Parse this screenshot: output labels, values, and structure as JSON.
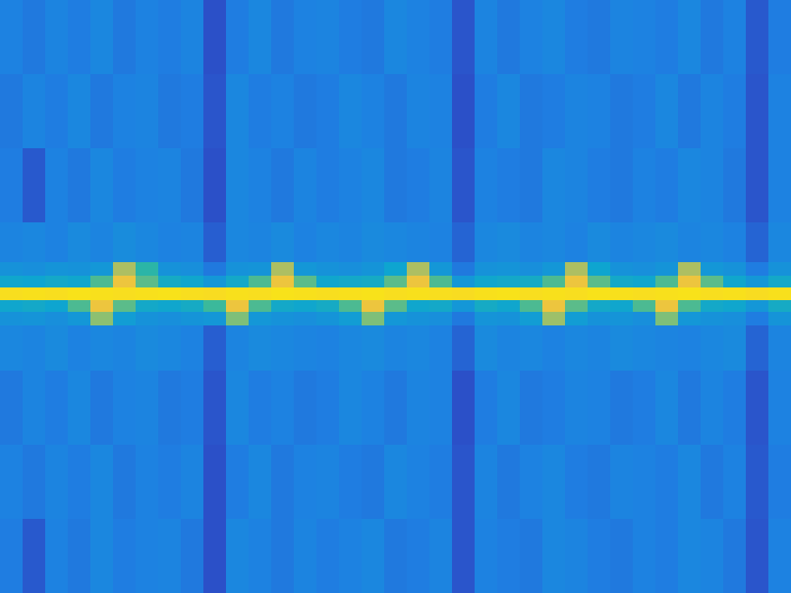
{
  "chart_data": {
    "type": "heatmap",
    "x": [
      0,
      25,
      50,
      75,
      100,
      125,
      150,
      175,
      200,
      225,
      250,
      275,
      300,
      325,
      350,
      375,
      400,
      425,
      450,
      475,
      500,
      525,
      550,
      575,
      600,
      625,
      650,
      675,
      700,
      725,
      750,
      775,
      800,
      825,
      850,
      875
    ],
    "y": [
      0,
      82,
      164,
      246,
      290,
      305,
      318,
      332,
      345,
      360,
      410,
      492,
      574,
      656
    ],
    "cells": [
      [
        0.32,
        0.3,
        0.33,
        0.31,
        0.34,
        0.3,
        0.32,
        0.31,
        0.33,
        0.22,
        0.31,
        0.34,
        0.3,
        0.32,
        0.33,
        0.31,
        0.3,
        0.34,
        0.32,
        0.31,
        0.23,
        0.33,
        0.3,
        0.32,
        0.34,
        0.31,
        0.3,
        0.33,
        0.32,
        0.31,
        0.34,
        0.3,
        0.32,
        0.24,
        0.31
      ],
      [
        0.3,
        0.33,
        0.31,
        0.34,
        0.3,
        0.32,
        0.33,
        0.3,
        0.31,
        0.23,
        0.34,
        0.31,
        0.32,
        0.3,
        0.31,
        0.34,
        0.32,
        0.3,
        0.33,
        0.32,
        0.22,
        0.31,
        0.34,
        0.3,
        0.31,
        0.33,
        0.32,
        0.3,
        0.31,
        0.34,
        0.3,
        0.33,
        0.31,
        0.23,
        0.32
      ],
      [
        0.31,
        0.24,
        0.32,
        0.3,
        0.34,
        0.31,
        0.32,
        0.33,
        0.3,
        0.22,
        0.34,
        0.32,
        0.3,
        0.33,
        0.31,
        0.32,
        0.34,
        0.3,
        0.31,
        0.33,
        0.23,
        0.32,
        0.31,
        0.3,
        0.34,
        0.33,
        0.31,
        0.3,
        0.32,
        0.31,
        0.34,
        0.33,
        0.3,
        0.23,
        0.32
      ],
      [
        0.33,
        0.34,
        0.32,
        0.35,
        0.33,
        0.36,
        0.34,
        0.32,
        0.33,
        0.25,
        0.34,
        0.33,
        0.35,
        0.32,
        0.34,
        0.33,
        0.35,
        0.34,
        0.33,
        0.32,
        0.26,
        0.34,
        0.35,
        0.33,
        0.34,
        0.32,
        0.35,
        0.33,
        0.34,
        0.35,
        0.33,
        0.34,
        0.32,
        0.26,
        0.34
      ],
      [
        0.38,
        0.37,
        0.39,
        0.38,
        0.4,
        0.72,
        0.55,
        0.38,
        0.37,
        0.3,
        0.38,
        0.39,
        0.72,
        0.4,
        0.38,
        0.37,
        0.39,
        0.45,
        0.72,
        0.4,
        0.3,
        0.38,
        0.39,
        0.37,
        0.4,
        0.72,
        0.45,
        0.38,
        0.37,
        0.39,
        0.72,
        0.4,
        0.38,
        0.31,
        0.38
      ],
      [
        0.46,
        0.45,
        0.47,
        0.46,
        0.6,
        0.84,
        0.62,
        0.48,
        0.46,
        0.4,
        0.47,
        0.6,
        0.84,
        0.62,
        0.46,
        0.47,
        0.48,
        0.62,
        0.84,
        0.6,
        0.4,
        0.46,
        0.47,
        0.48,
        0.6,
        0.84,
        0.62,
        0.47,
        0.46,
        0.6,
        0.84,
        0.62,
        0.46,
        0.4,
        0.47
      ],
      [
        0.97,
        0.98,
        0.97,
        0.99,
        0.98,
        0.97,
        0.98,
        0.99,
        0.97,
        0.96,
        0.98,
        0.97,
        0.99,
        0.98,
        0.97,
        0.98,
        0.99,
        0.97,
        0.98,
        0.97,
        0.96,
        0.98,
        0.99,
        0.97,
        0.98,
        0.97,
        0.99,
        0.98,
        0.97,
        0.98,
        0.99,
        0.97,
        0.98,
        0.96,
        0.98
      ],
      [
        0.46,
        0.47,
        0.45,
        0.6,
        0.84,
        0.62,
        0.47,
        0.46,
        0.48,
        0.58,
        0.84,
        0.6,
        0.47,
        0.46,
        0.48,
        0.6,
        0.84,
        0.62,
        0.46,
        0.47,
        0.4,
        0.48,
        0.46,
        0.6,
        0.84,
        0.62,
        0.47,
        0.46,
        0.6,
        0.84,
        0.6,
        0.47,
        0.46,
        0.4,
        0.48
      ],
      [
        0.38,
        0.39,
        0.37,
        0.4,
        0.68,
        0.42,
        0.38,
        0.37,
        0.39,
        0.4,
        0.66,
        0.4,
        0.38,
        0.37,
        0.39,
        0.42,
        0.66,
        0.4,
        0.38,
        0.37,
        0.3,
        0.39,
        0.38,
        0.42,
        0.7,
        0.42,
        0.38,
        0.39,
        0.37,
        0.66,
        0.4,
        0.38,
        0.37,
        0.31,
        0.39
      ],
      [
        0.34,
        0.33,
        0.35,
        0.32,
        0.34,
        0.33,
        0.35,
        0.34,
        0.32,
        0.25,
        0.33,
        0.35,
        0.34,
        0.33,
        0.32,
        0.34,
        0.35,
        0.33,
        0.34,
        0.32,
        0.26,
        0.35,
        0.33,
        0.34,
        0.32,
        0.34,
        0.33,
        0.35,
        0.34,
        0.33,
        0.32,
        0.34,
        0.35,
        0.26,
        0.33
      ],
      [
        0.3,
        0.33,
        0.31,
        0.34,
        0.3,
        0.32,
        0.33,
        0.3,
        0.31,
        0.23,
        0.34,
        0.31,
        0.32,
        0.3,
        0.31,
        0.34,
        0.32,
        0.3,
        0.33,
        0.32,
        0.22,
        0.31,
        0.34,
        0.3,
        0.31,
        0.33,
        0.32,
        0.3,
        0.31,
        0.34,
        0.3,
        0.33,
        0.31,
        0.23,
        0.32
      ],
      [
        0.32,
        0.3,
        0.33,
        0.31,
        0.34,
        0.3,
        0.32,
        0.31,
        0.33,
        0.22,
        0.31,
        0.34,
        0.3,
        0.32,
        0.33,
        0.31,
        0.3,
        0.34,
        0.32,
        0.31,
        0.23,
        0.33,
        0.3,
        0.32,
        0.34,
        0.31,
        0.3,
        0.33,
        0.32,
        0.31,
        0.34,
        0.3,
        0.32,
        0.24,
        0.31
      ],
      [
        0.31,
        0.24,
        0.32,
        0.3,
        0.34,
        0.31,
        0.32,
        0.33,
        0.3,
        0.22,
        0.34,
        0.32,
        0.3,
        0.33,
        0.31,
        0.32,
        0.34,
        0.3,
        0.31,
        0.33,
        0.23,
        0.32,
        0.31,
        0.3,
        0.34,
        0.33,
        0.31,
        0.3,
        0.32,
        0.31,
        0.34,
        0.33,
        0.3,
        0.23,
        0.32
      ]
    ],
    "xlim": [
      0,
      875
    ],
    "ylim": [
      656,
      0
    ],
    "xticks": [],
    "yticks": [],
    "tick_labels": false
  }
}
